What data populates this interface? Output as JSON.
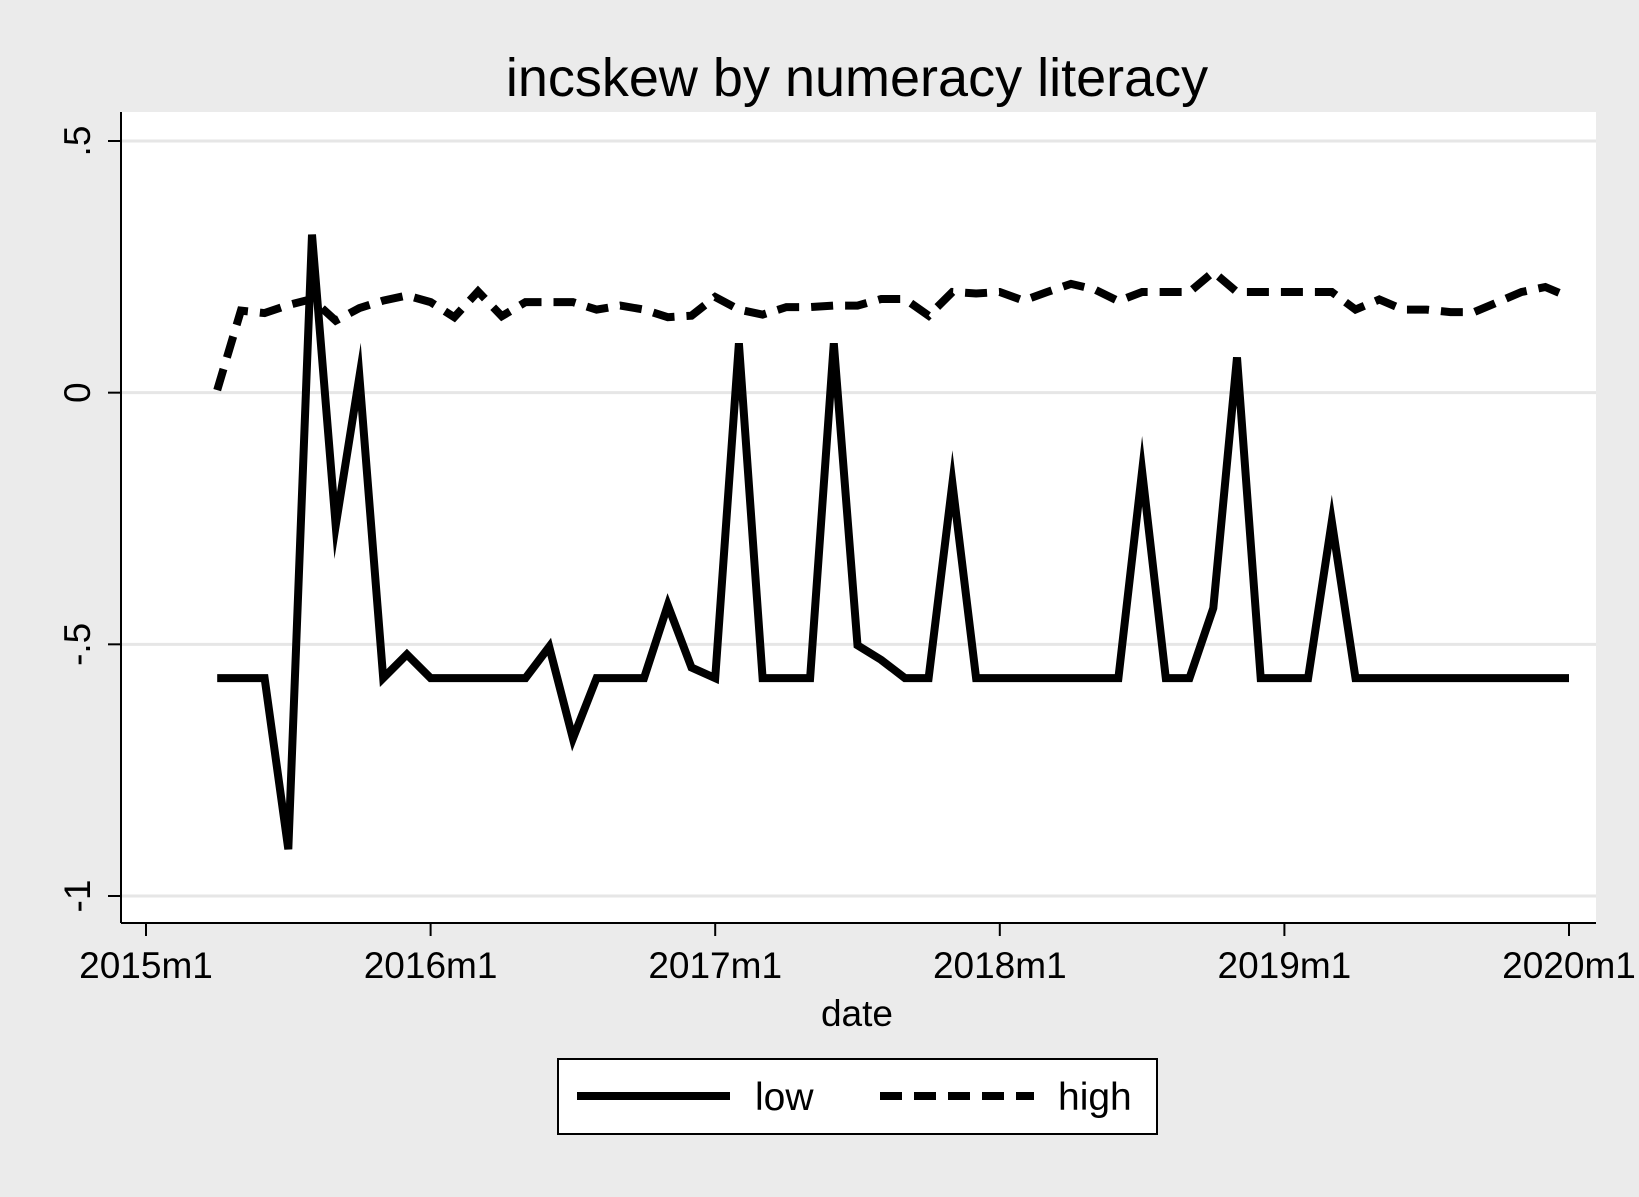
{
  "colors": {
    "outer_background": "#ebebeb",
    "plot_background": "#ffffff",
    "gridline": "#e6e6e6",
    "line": "#000000"
  },
  "chart_data": {
    "type": "line",
    "title": "incskew by numeracy literacy",
    "xlabel": "date",
    "ylabel": "",
    "x_axis_kind": "monthly date",
    "xlim": [
      "2014m12",
      "2020m1"
    ],
    "ylim": [
      -1.05,
      0.56
    ],
    "grid": "horizontal only",
    "legend_position": "bottom-center",
    "x_ticks": [
      {
        "value": "2015m1",
        "label": "2015m1"
      },
      {
        "value": "2016m1",
        "label": "2016m1"
      },
      {
        "value": "2017m1",
        "label": "2017m1"
      },
      {
        "value": "2018m1",
        "label": "2018m1"
      },
      {
        "value": "2019m1",
        "label": "2019m1"
      },
      {
        "value": "2020m1",
        "label": "2020m1"
      }
    ],
    "y_ticks": [
      {
        "value": 0.5,
        "label": ".5"
      },
      {
        "value": 0,
        "label": "0"
      },
      {
        "value": -0.5,
        "label": "-.5"
      },
      {
        "value": -1,
        "label": "-1"
      }
    ],
    "x": [
      "2015m4",
      "2015m5",
      "2015m6",
      "2015m7",
      "2015m8",
      "2015m9",
      "2015m10",
      "2015m11",
      "2015m12",
      "2016m1",
      "2016m2",
      "2016m3",
      "2016m4",
      "2016m5",
      "2016m6",
      "2016m7",
      "2016m8",
      "2016m9",
      "2016m10",
      "2016m11",
      "2016m12",
      "2017m1",
      "2017m2",
      "2017m3",
      "2017m4",
      "2017m5",
      "2017m6",
      "2017m7",
      "2017m8",
      "2017m9",
      "2017m10",
      "2017m11",
      "2017m12",
      "2018m1",
      "2018m2",
      "2018m3",
      "2018m4",
      "2018m5",
      "2018m6",
      "2018m7",
      "2018m8",
      "2018m9",
      "2018m10",
      "2018m11",
      "2018m12",
      "2019m1",
      "2019m2",
      "2019m3",
      "2019m4",
      "2019m5",
      "2019m6",
      "2019m7",
      "2019m8",
      "2019m9",
      "2019m10",
      "2019m11",
      "2019m12",
      "2020m1"
    ],
    "series": [
      {
        "name": "low",
        "style": "solid",
        "values": [
          -0.567,
          -0.567,
          -0.567,
          -0.907,
          0.314,
          -0.264,
          0.032,
          -0.567,
          -0.52,
          -0.567,
          -0.567,
          -0.567,
          -0.567,
          -0.567,
          -0.505,
          -0.687,
          -0.567,
          -0.567,
          -0.567,
          -0.422,
          -0.546,
          -0.567,
          0.098,
          -0.567,
          -0.567,
          -0.567,
          0.098,
          -0.502,
          -0.531,
          -0.567,
          -0.567,
          -0.18,
          -0.567,
          -0.567,
          -0.567,
          -0.567,
          -0.567,
          -0.567,
          -0.567,
          -0.156,
          -0.567,
          -0.567,
          -0.428,
          0.07,
          -0.567,
          -0.567,
          -0.567,
          -0.256,
          -0.567,
          -0.567,
          -0.567,
          -0.567,
          -0.567,
          -0.567,
          -0.567,
          -0.567,
          -0.567,
          -0.567
        ]
      },
      {
        "name": "high",
        "style": "dashed",
        "values": [
          0.005,
          0.163,
          0.158,
          0.174,
          0.186,
          0.143,
          0.168,
          0.183,
          0.193,
          0.18,
          0.15,
          0.201,
          0.152,
          0.18,
          0.18,
          0.18,
          0.165,
          0.173,
          0.165,
          0.15,
          0.153,
          0.19,
          0.165,
          0.155,
          0.17,
          0.17,
          0.173,
          0.173,
          0.186,
          0.186,
          0.153,
          0.2,
          0.197,
          0.2,
          0.183,
          0.2,
          0.216,
          0.205,
          0.182,
          0.2,
          0.2,
          0.2,
          0.24,
          0.2,
          0.2,
          0.2,
          0.2,
          0.2,
          0.165,
          0.185,
          0.165,
          0.165,
          0.16,
          0.16,
          0.18,
          0.2,
          0.21,
          0.19
        ]
      }
    ]
  }
}
